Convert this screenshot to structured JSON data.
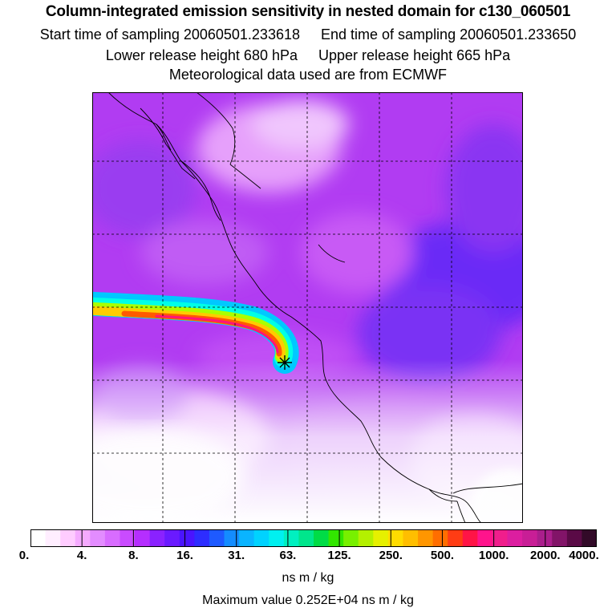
{
  "header": {
    "title": "Column-integrated emission sensitivity in nested domain for c130_060501",
    "start_label": "Start time of sampling 20060501.233618",
    "end_label": "End time of sampling 20060501.233650",
    "lower_label": "Lower release height  680 hPa",
    "upper_label": "Upper release height  665 hPa",
    "met_label": "Meteorological data used are from ECMWF"
  },
  "colorbar": {
    "tick_labels": [
      "0.",
      "4.",
      "8.",
      "16.",
      "31.",
      "63.",
      "125.",
      "250.",
      "500.",
      "1000.",
      "2000.",
      "4000."
    ],
    "units": "ns m / kg",
    "colors": [
      "#ffffff",
      "#ffeeff",
      "#ffccff",
      "#f5aaff",
      "#e38cff",
      "#d86cff",
      "#c94bff",
      "#b52eff",
      "#8a22ff",
      "#6a1aff",
      "#4a14ff",
      "#2d2dff",
      "#1e5aff",
      "#148cff",
      "#0ab4ff",
      "#00d2ff",
      "#00f0f0",
      "#00f0c0",
      "#00e68c",
      "#00dc46",
      "#32e600",
      "#78f000",
      "#b4f000",
      "#e6f000",
      "#ffdc00",
      "#ffbe00",
      "#ff9600",
      "#ff6e00",
      "#ff3c14",
      "#ff1446",
      "#ff148c",
      "#f01e8c",
      "#dc1ea0",
      "#c81e96",
      "#aa1e8c",
      "#821468",
      "#5a0a46",
      "#320a28"
    ]
  },
  "footer": {
    "max_value": "Maximum value  0.252E+04 ns m / kg"
  },
  "map": {
    "receptor_marker": "release-point-star-icon",
    "plume_colors": [
      "#00c8ff",
      "#00ffe6",
      "#aaff00",
      "#ffcc00",
      "#ff5a00",
      "#ff1478"
    ]
  }
}
